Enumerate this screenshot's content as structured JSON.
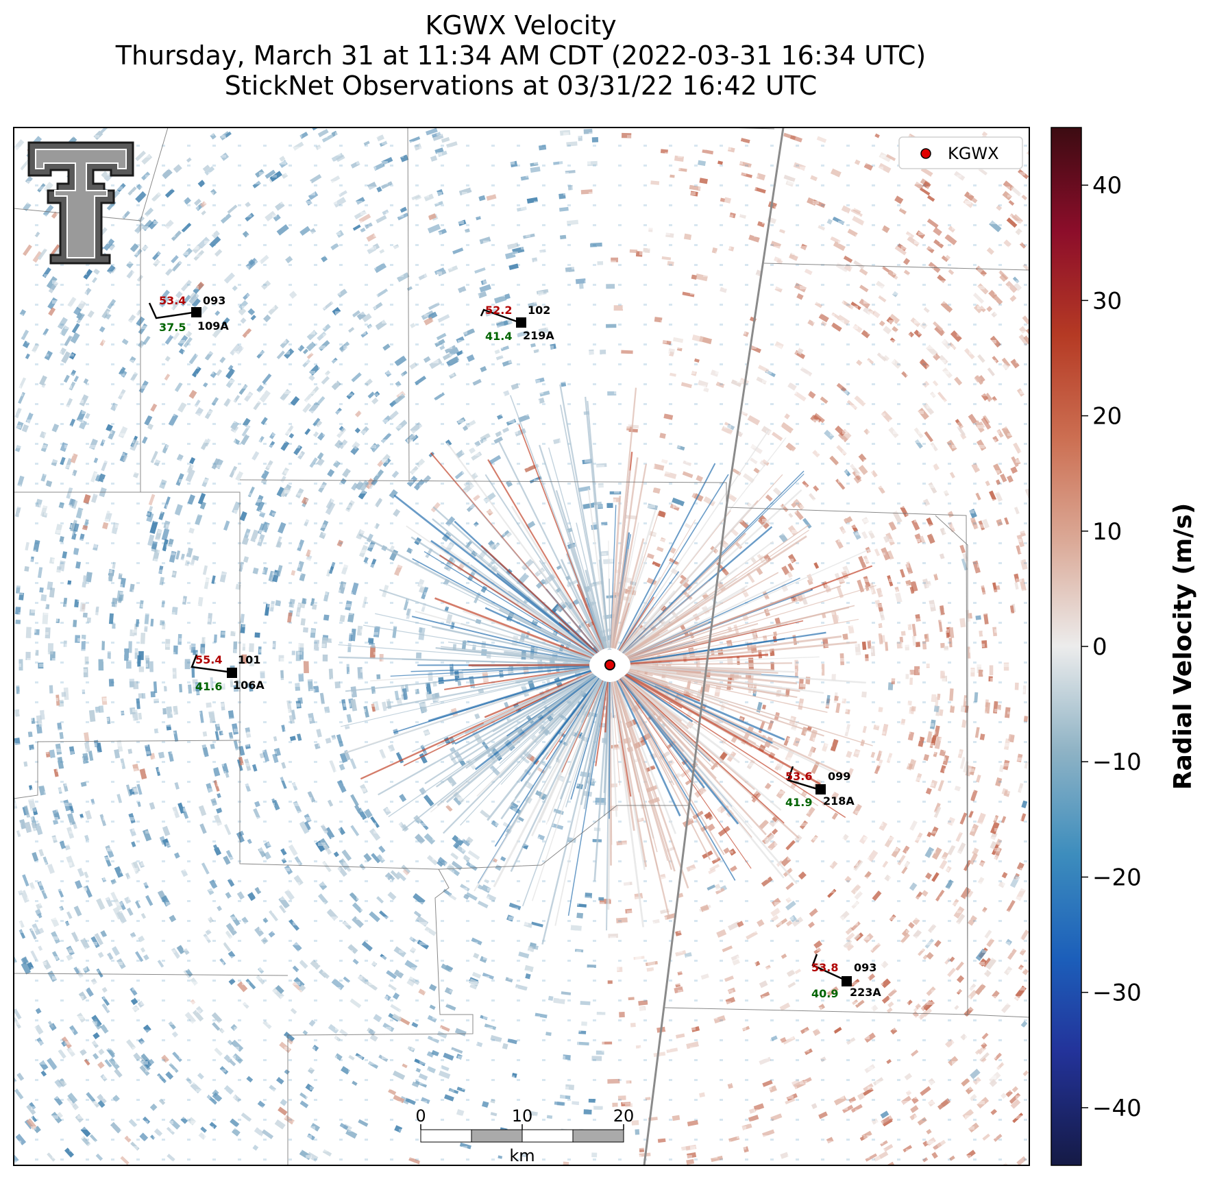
{
  "header": {
    "title_line1": "KGWX Velocity",
    "title_line2": "Thursday, March 31 at 11:34 AM CDT (2022-03-31 16:34 UTC)",
    "title_line3": "StickNet Observations at 03/31/22 16:42 UTC"
  },
  "legend": {
    "radar_label": "KGWX",
    "radar_marker_color": "#e00000"
  },
  "colorbar": {
    "label": "Radial Velocity (m/s)",
    "vmin": -45,
    "vmax": 45,
    "ticks": [
      "40",
      "30",
      "20",
      "10",
      "0",
      "−10",
      "−20",
      "−30",
      "−40"
    ],
    "tick_values": [
      40,
      30,
      20,
      10,
      0,
      -10,
      -20,
      -30,
      -40
    ]
  },
  "scalebar": {
    "ticks": [
      "0",
      "10",
      "20"
    ],
    "unit": "km"
  },
  "logo": {
    "name": "texas-tech-double-t-logo"
  },
  "stations": [
    {
      "id": "109A",
      "temp": "53.4",
      "dew": "37.5",
      "pres": "093"
    },
    {
      "id": "219A",
      "temp": "52.2",
      "dew": "41.4",
      "pres": "102"
    },
    {
      "id": "106A",
      "temp": "55.4",
      "dew": "41.6",
      "pres": "101"
    },
    {
      "id": "218A",
      "temp": "53.6",
      "dew": "41.9",
      "pres": "099"
    },
    {
      "id": "223A",
      "temp": "53.8",
      "dew": "40.9",
      "pres": "093"
    }
  ],
  "colors": {
    "temp": "#b00000",
    "dew": "#006400",
    "station": "#000000"
  }
}
